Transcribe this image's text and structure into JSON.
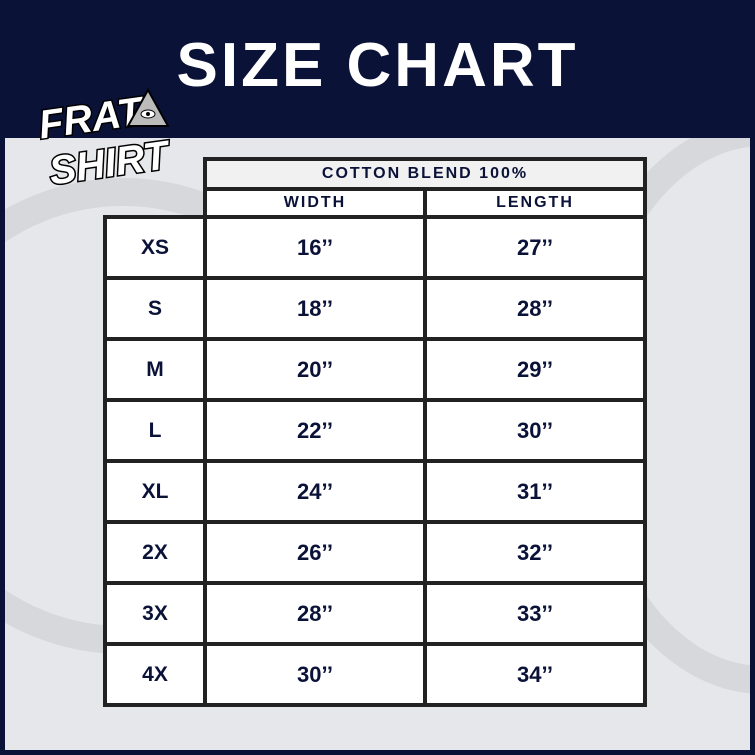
{
  "title": "SIZE CHART",
  "logo": {
    "text": "FRAT SHIRT",
    "icon": "eye-pyramid-icon"
  },
  "colors": {
    "navy": "#0b1238",
    "panel": "#e6e7ea",
    "border": "#222222"
  },
  "table": {
    "group_header": "COTTON BLEND 100%",
    "columns": [
      "WIDTH",
      "LENGTH"
    ],
    "rows": [
      {
        "size": "XS",
        "width": "16’’",
        "length": "27’’"
      },
      {
        "size": "S",
        "width": "18’’",
        "length": "28’’"
      },
      {
        "size": "M",
        "width": "20’’",
        "length": "29’’"
      },
      {
        "size": "L",
        "width": "22’’",
        "length": "30’’"
      },
      {
        "size": "XL",
        "width": "24’’",
        "length": "31’’"
      },
      {
        "size": "2X",
        "width": "26’’",
        "length": "32’’"
      },
      {
        "size": "3X",
        "width": "28’’",
        "length": "33’’"
      },
      {
        "size": "4X",
        "width": "30’’",
        "length": "34’’"
      }
    ]
  }
}
